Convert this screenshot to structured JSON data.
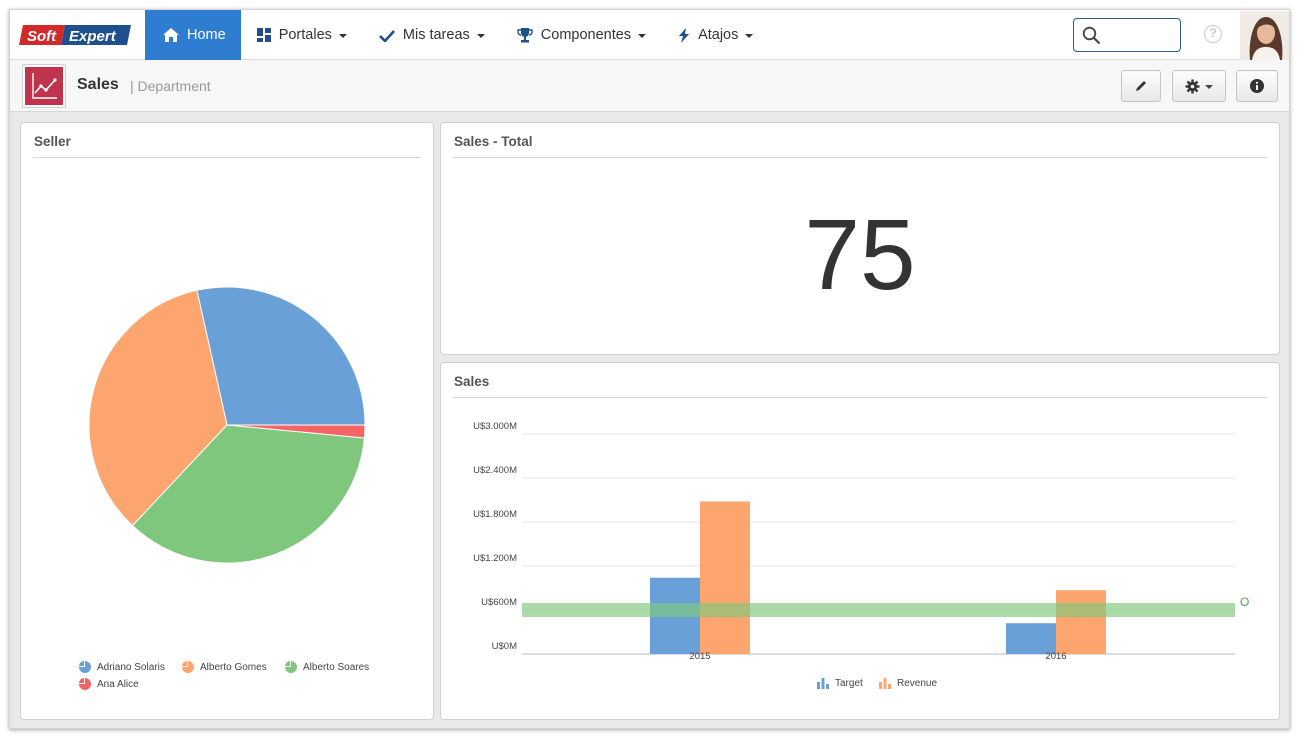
{
  "nav": {
    "logo_text_1": "Soft",
    "logo_text_2": "Expert",
    "items": [
      {
        "label": "Home",
        "icon": "home-icon",
        "active": true
      },
      {
        "label": "Portales",
        "icon": "grid-icon"
      },
      {
        "label": "Mis tareas",
        "icon": "check-icon"
      },
      {
        "label": "Componentes",
        "icon": "trophy-icon"
      },
      {
        "label": "Atajos",
        "icon": "bolt-icon"
      }
    ],
    "help_glyph": "?"
  },
  "header": {
    "title": "Sales",
    "subtitle": "| Department"
  },
  "panels": {
    "seller": {
      "title": "Seller",
      "legend": [
        "Adriano Solaris",
        "Alberto Gomes",
        "Alberto Soares",
        "Ana Alice"
      ]
    },
    "total": {
      "title": "Sales - Total",
      "value": "75"
    },
    "sales": {
      "title": "Sales",
      "y_ticks": [
        "U$3.000M",
        "U$2.400M",
        "U$1.800M",
        "U$1.200M",
        "U$600M",
        "U$0M"
      ],
      "x_ticks": [
        "2015",
        "2016"
      ],
      "legend": [
        "Target",
        "Revenue"
      ],
      "target_line_label": "O"
    }
  },
  "colors": {
    "nav_active": "#2f7dd1",
    "blue": "#6aa0d8",
    "orange": "#fca56e",
    "green": "#7fc77d",
    "red": "#f46464"
  },
  "chart_data": [
    {
      "type": "pie",
      "title": "Seller",
      "categories": [
        "Adriano Solaris",
        "Alberto Gomes",
        "Alberto Soares",
        "Ana Alice"
      ],
      "values": [
        28.5,
        34.5,
        35.5,
        1.5
      ],
      "legend": "bottom"
    },
    {
      "type": "bar",
      "title": "Sales",
      "categories": [
        "2015",
        "2016"
      ],
      "series": [
        {
          "name": "Target",
          "values": [
            1040,
            420
          ]
        },
        {
          "name": "Revenue",
          "values": [
            2080,
            870
          ]
        }
      ],
      "reference_line": {
        "label": "O",
        "value": 600
      },
      "ylim": [
        0,
        3000
      ],
      "y_unit": "U$M",
      "grid": true,
      "legend": "bottom"
    }
  ]
}
